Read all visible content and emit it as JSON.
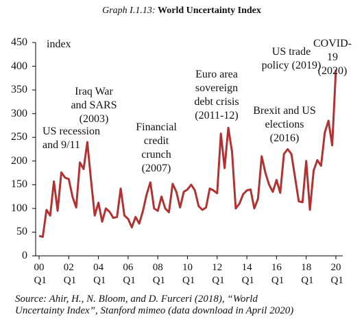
{
  "chart_data": {
    "type": "line",
    "graph_label": "Graph I.1.13:",
    "title": "World Uncertainty Index",
    "y_label": "index",
    "source": "Source: Ahir, H., N. Bloom, and D. Furceri (2018), “World\nUncertainty Index”, Stanford mimeo (data download in April 2020)",
    "annotations": [
      "US recession\nand 9/11",
      "Iraq War\nand SARS\n(2003)",
      "Financial\ncredit\ncrunch\n(2007)",
      "Euro area\nsovereign\ndebt crisis\n(2011-12)",
      "Brexit and US\nelections\n(2016)",
      "US trade\npolicy (2019)",
      "COVID-19\n(2020)"
    ],
    "categories": [
      "00 Q1",
      null,
      null,
      null,
      null,
      null,
      null,
      null,
      "02 Q1",
      null,
      null,
      null,
      null,
      null,
      null,
      null,
      "04 Q1",
      null,
      null,
      null,
      null,
      null,
      null,
      null,
      "06 Q1",
      null,
      null,
      null,
      null,
      null,
      null,
      null,
      "08 Q1",
      null,
      null,
      null,
      null,
      null,
      null,
      null,
      "10 Q1",
      null,
      null,
      null,
      null,
      null,
      null,
      null,
      "12 Q1",
      null,
      null,
      null,
      null,
      null,
      null,
      null,
      "14 Q1",
      null,
      null,
      null,
      null,
      null,
      null,
      null,
      "16 Q1",
      null,
      null,
      null,
      null,
      null,
      null,
      null,
      "18 Q1",
      null,
      null,
      null,
      null,
      null,
      null,
      null,
      "20 Q1"
    ],
    "series": [
      {
        "name": "World Uncertainty Index",
        "color": "#b03232",
        "values": [
          42,
          40,
          97,
          85,
          157,
          95,
          176,
          165,
          162,
          125,
          102,
          197,
          183,
          240,
          160,
          85,
          112,
          72,
          100,
          93,
          80,
          82,
          142,
          85,
          78,
          60,
          82,
          68,
          95,
          130,
          155,
          100,
          95,
          125,
          100,
          92,
          152,
          135,
          102,
          135,
          140,
          150,
          138,
          105,
          97,
          102,
          142,
          138,
          132,
          258,
          185,
          270,
          220,
          100,
          110,
          130,
          138,
          140,
          100,
          120,
          210,
          175,
          150,
          135,
          160,
          133,
          215,
          225,
          215,
          165,
          115,
          113,
          200,
          97,
          180,
          202,
          190,
          260,
          285,
          233,
          393
        ]
      }
    ],
    "ylim": [
      0,
      450
    ],
    "yticks": [
      0,
      50,
      100,
      150,
      200,
      250,
      300,
      350,
      400,
      450
    ]
  }
}
